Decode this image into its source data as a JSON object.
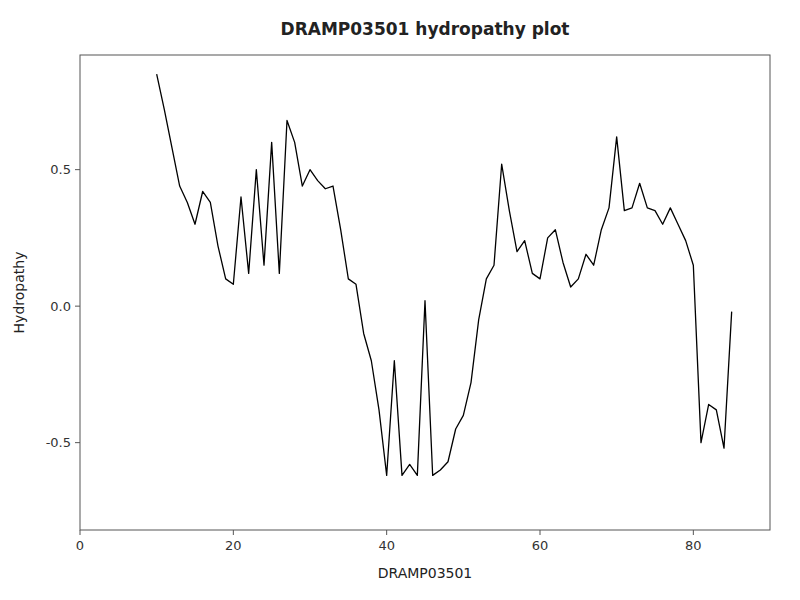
{
  "chart_data": {
    "type": "line",
    "title": "DRAMP03501 hydropathy plot",
    "xlabel": "DRAMP03501",
    "ylabel": "Hydropathy",
    "xlim": [
      0,
      90
    ],
    "ylim": [
      -0.82,
      0.92
    ],
    "xticks": [
      0,
      20,
      40,
      60,
      80
    ],
    "yticks": [
      -0.5,
      {
        "value": 0.0,
        "label": "0.0"
      },
      0.5
    ],
    "color": "black",
    "grid": false,
    "x": [
      10,
      11,
      12,
      13,
      14,
      15,
      16,
      17,
      18,
      19,
      20,
      21,
      22,
      23,
      24,
      25,
      26,
      27,
      28,
      29,
      30,
      31,
      32,
      33,
      34,
      35,
      36,
      37,
      38,
      39,
      40,
      41,
      42,
      43,
      44,
      45,
      46,
      47,
      48,
      49,
      50,
      51,
      52,
      53,
      54,
      55,
      56,
      57,
      58,
      59,
      60,
      61,
      62,
      63,
      64,
      65,
      66,
      67,
      68,
      69,
      70,
      71,
      72,
      73,
      74,
      75,
      76,
      77,
      78,
      79,
      80,
      81,
      82,
      83,
      84,
      85
    ],
    "values": [
      0.85,
      0.72,
      0.58,
      0.44,
      0.38,
      0.3,
      0.42,
      0.38,
      0.22,
      0.1,
      0.08,
      0.4,
      0.12,
      0.5,
      0.15,
      0.6,
      0.12,
      0.68,
      0.6,
      0.44,
      0.5,
      0.46,
      0.43,
      0.44,
      0.28,
      0.1,
      0.08,
      -0.1,
      -0.2,
      -0.38,
      -0.62,
      -0.2,
      -0.62,
      -0.58,
      -0.62,
      0.02,
      -0.62,
      -0.6,
      -0.57,
      -0.45,
      -0.4,
      -0.28,
      -0.05,
      0.1,
      0.15,
      0.52,
      0.35,
      0.2,
      0.24,
      0.12,
      0.1,
      0.25,
      0.28,
      0.16,
      0.07,
      0.1,
      0.19,
      0.15,
      0.28,
      0.36,
      0.62,
      0.35,
      0.36,
      0.45,
      0.36,
      0.35,
      0.3,
      0.36,
      0.3,
      0.24,
      0.15,
      -0.5,
      -0.36,
      -0.38,
      -0.52,
      -0.02
    ]
  }
}
